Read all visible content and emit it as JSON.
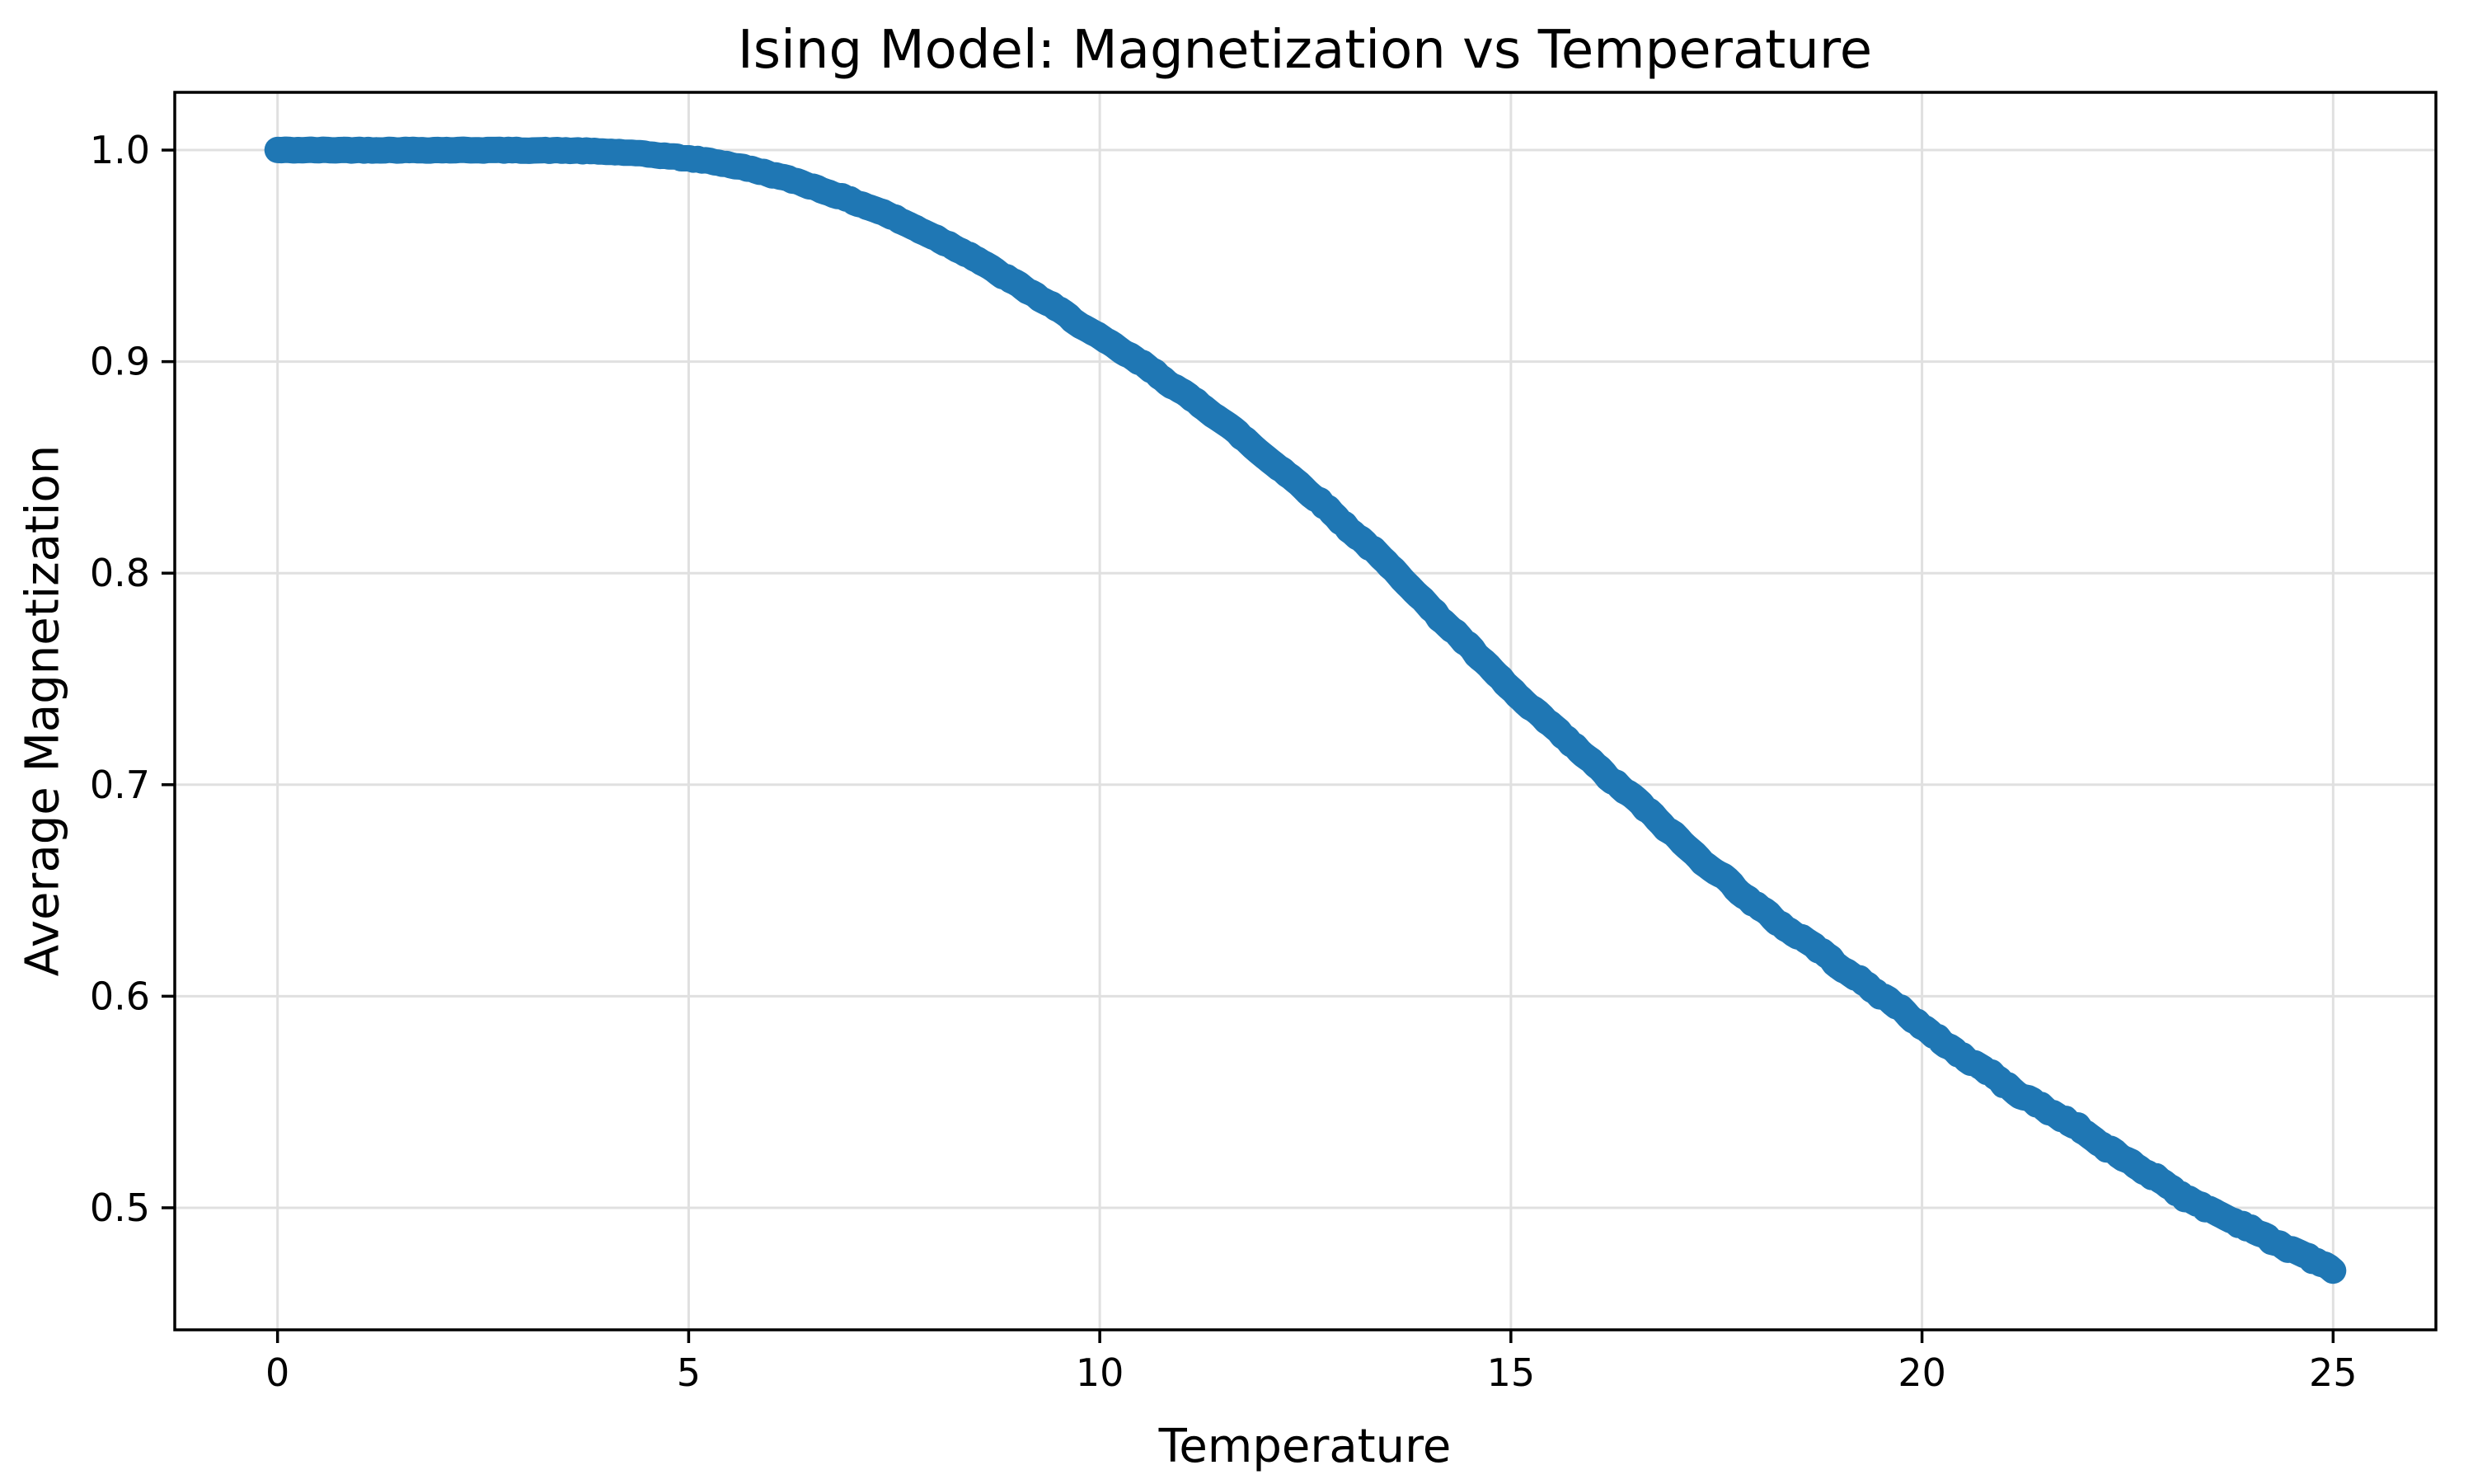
{
  "title": "Ising Model: Magnetization vs Temperature",
  "chart_data": {
    "type": "line",
    "title": "Ising Model: Magnetization vs Temperature",
    "xlabel": "Temperature",
    "ylabel": "Average Magnetization",
    "x_ticks": [
      0,
      5,
      10,
      15,
      20,
      25
    ],
    "x_tick_labels": [
      "0",
      "5",
      "10",
      "15",
      "20",
      "25"
    ],
    "y_ticks": [
      0.5,
      0.6,
      0.7,
      0.8,
      0.9,
      1.0
    ],
    "y_tick_labels": [
      "0.5",
      "0.6",
      "0.7",
      "0.8",
      "0.9",
      "1.0"
    ],
    "xlim": [
      -1.25,
      26.25
    ],
    "ylim": [
      0.4423,
      1.0273
    ],
    "grid": true,
    "legend": false,
    "series": [
      {
        "name": "average-magnetization",
        "color": "#1f77b4",
        "style": "thick dotted band of simulation points",
        "control_points": {
          "t": [
            0,
            1,
            2,
            3,
            4,
            5,
            6,
            7.5,
            10,
            12.5,
            15,
            17.5,
            20,
            22.5,
            25
          ],
          "m": [
            1.0,
            1.0,
            1.0,
            0.9999,
            0.9993,
            0.996,
            0.9885,
            0.968,
            0.912,
            0.84,
            0.746,
            0.659,
            0.586,
            0.522,
            0.469
          ]
        },
        "x_range": [
          0,
          25
        ],
        "end_value": 0.469,
        "noise_amplitude": 0.0019,
        "n_samples": 500
      }
    ],
    "colors": {
      "curve": "#1f77b4",
      "grid": "#e0e0e0",
      "spine": "#000000",
      "text": "#000000",
      "background": "#ffffff"
    }
  }
}
